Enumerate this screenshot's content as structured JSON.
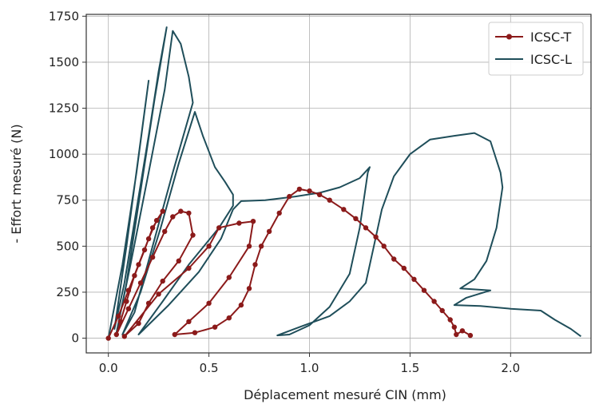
{
  "chart_data": {
    "type": "line",
    "title": "",
    "xlabel": "Déplacement mesuré CIN (mm)",
    "ylabel": "- Effort mesuré (N)",
    "xlim": [
      -0.11,
      2.4
    ],
    "ylim": [
      -80,
      1760
    ],
    "xticks": [
      0.0,
      0.5,
      1.0,
      1.5,
      2.0
    ],
    "xtick_labels": [
      "0.0",
      "0.5",
      "1.0",
      "1.5",
      "2.0"
    ],
    "yticks": [
      0,
      250,
      500,
      750,
      1000,
      1250,
      1500,
      1750
    ],
    "ytick_labels": [
      "0",
      "250",
      "500",
      "750",
      "1000",
      "1250",
      "1500",
      "1750"
    ],
    "grid": true,
    "legend_position": "top-right",
    "series": [
      {
        "name": "ICSC-T",
        "color": "#8b1a1a",
        "marker": "circle",
        "points": [
          [
            0.0,
            0
          ],
          [
            0.05,
            120
          ],
          [
            0.1,
            260
          ],
          [
            0.15,
            400
          ],
          [
            0.2,
            540
          ],
          [
            0.24,
            640
          ],
          [
            0.27,
            690
          ],
          [
            0.22,
            600
          ],
          [
            0.18,
            480
          ],
          [
            0.13,
            340
          ],
          [
            0.09,
            200
          ],
          [
            0.06,
            90
          ],
          [
            0.04,
            20
          ],
          [
            0.1,
            160
          ],
          [
            0.16,
            300
          ],
          [
            0.22,
            440
          ],
          [
            0.28,
            580
          ],
          [
            0.32,
            660
          ],
          [
            0.36,
            690
          ],
          [
            0.4,
            680
          ],
          [
            0.42,
            560
          ],
          [
            0.35,
            420
          ],
          [
            0.27,
            310
          ],
          [
            0.2,
            190
          ],
          [
            0.15,
            80
          ],
          [
            0.08,
            10
          ],
          [
            0.25,
            240
          ],
          [
            0.4,
            380
          ],
          [
            0.5,
            500
          ],
          [
            0.55,
            600
          ],
          [
            0.65,
            625
          ],
          [
            0.72,
            635
          ],
          [
            0.7,
            500
          ],
          [
            0.6,
            330
          ],
          [
            0.5,
            190
          ],
          [
            0.4,
            90
          ],
          [
            0.33,
            20
          ],
          [
            0.43,
            30
          ],
          [
            0.53,
            60
          ],
          [
            0.6,
            110
          ],
          [
            0.66,
            180
          ],
          [
            0.7,
            270
          ],
          [
            0.73,
            400
          ],
          [
            0.76,
            500
          ],
          [
            0.8,
            580
          ],
          [
            0.85,
            680
          ],
          [
            0.9,
            770
          ],
          [
            0.95,
            810
          ],
          [
            1.0,
            800
          ],
          [
            1.05,
            780
          ],
          [
            1.1,
            750
          ],
          [
            1.17,
            700
          ],
          [
            1.23,
            650
          ],
          [
            1.28,
            600
          ],
          [
            1.33,
            550
          ],
          [
            1.37,
            500
          ],
          [
            1.42,
            430
          ],
          [
            1.47,
            380
          ],
          [
            1.52,
            320
          ],
          [
            1.57,
            260
          ],
          [
            1.62,
            200
          ],
          [
            1.66,
            150
          ],
          [
            1.7,
            100
          ],
          [
            1.72,
            60
          ],
          [
            1.73,
            20
          ],
          [
            1.76,
            40
          ],
          [
            1.8,
            15
          ]
        ]
      },
      {
        "name": "ICSC-L",
        "color": "#1f4e5a",
        "marker": "none",
        "points": [
          [
            0.0,
            0
          ],
          [
            0.07,
            400
          ],
          [
            0.14,
            900
          ],
          [
            0.2,
            1400
          ],
          [
            0.09,
            500
          ],
          [
            0.03,
            50
          ],
          [
            0.08,
            300
          ],
          [
            0.14,
            700
          ],
          [
            0.2,
            1100
          ],
          [
            0.25,
            1450
          ],
          [
            0.29,
            1690
          ],
          [
            0.23,
            1300
          ],
          [
            0.16,
            800
          ],
          [
            0.09,
            300
          ],
          [
            0.04,
            30
          ],
          [
            0.11,
            400
          ],
          [
            0.2,
            900
          ],
          [
            0.28,
            1350
          ],
          [
            0.32,
            1670
          ],
          [
            0.36,
            1600
          ],
          [
            0.4,
            1420
          ],
          [
            0.42,
            1280
          ],
          [
            0.32,
            900
          ],
          [
            0.22,
            500
          ],
          [
            0.13,
            140
          ],
          [
            0.07,
            20
          ],
          [
            0.16,
            250
          ],
          [
            0.26,
            600
          ],
          [
            0.35,
            950
          ],
          [
            0.43,
            1230
          ],
          [
            0.47,
            1100
          ],
          [
            0.53,
            930
          ],
          [
            0.58,
            850
          ],
          [
            0.62,
            780
          ],
          [
            0.62,
            720
          ],
          [
            0.55,
            600
          ],
          [
            0.4,
            400
          ],
          [
            0.27,
            200
          ],
          [
            0.15,
            20
          ],
          [
            0.3,
            180
          ],
          [
            0.45,
            360
          ],
          [
            0.56,
            540
          ],
          [
            0.62,
            700
          ],
          [
            0.66,
            745
          ],
          [
            0.78,
            750
          ],
          [
            0.93,
            770
          ],
          [
            1.05,
            790
          ],
          [
            1.15,
            820
          ],
          [
            1.25,
            870
          ],
          [
            1.3,
            930
          ],
          [
            1.29,
            900
          ],
          [
            1.25,
            600
          ],
          [
            1.2,
            350
          ],
          [
            1.1,
            170
          ],
          [
            1.0,
            70
          ],
          [
            0.9,
            20
          ],
          [
            0.84,
            15
          ],
          [
            0.95,
            60
          ],
          [
            1.1,
            120
          ],
          [
            1.2,
            200
          ],
          [
            1.28,
            300
          ],
          [
            1.32,
            500
          ],
          [
            1.36,
            700
          ],
          [
            1.42,
            880
          ],
          [
            1.5,
            1000
          ],
          [
            1.6,
            1080
          ],
          [
            1.72,
            1100
          ],
          [
            1.82,
            1115
          ],
          [
            1.9,
            1070
          ],
          [
            1.95,
            900
          ],
          [
            1.96,
            820
          ],
          [
            1.93,
            600
          ],
          [
            1.88,
            420
          ],
          [
            1.82,
            320
          ],
          [
            1.75,
            270
          ],
          [
            1.9,
            260
          ],
          [
            1.78,
            220
          ],
          [
            1.72,
            180
          ],
          [
            1.85,
            175
          ],
          [
            2.0,
            160
          ],
          [
            2.15,
            150
          ],
          [
            2.22,
            100
          ],
          [
            2.3,
            50
          ],
          [
            2.35,
            10
          ]
        ]
      }
    ]
  }
}
